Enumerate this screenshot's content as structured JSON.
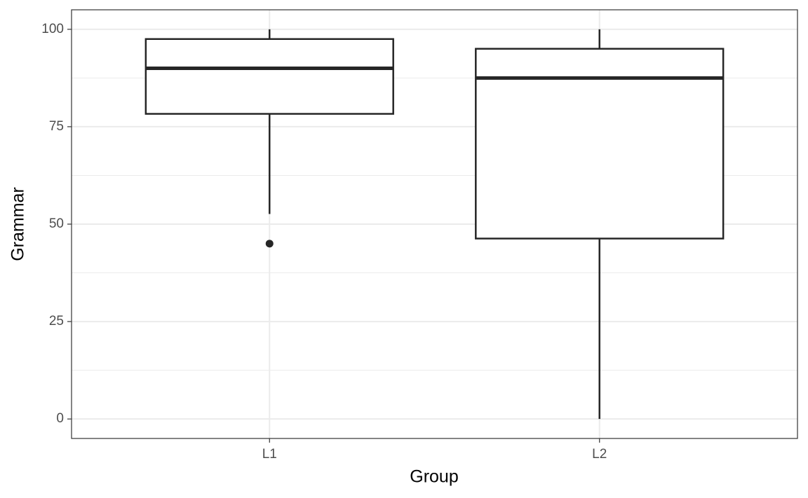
{
  "chart_data": {
    "type": "box",
    "x_label": "Group",
    "y_label": "Grammar",
    "categories": [
      "L1",
      "L2"
    ],
    "boxes": [
      {
        "whisker_low": 52.6,
        "q1": 78.3,
        "median": 90,
        "q3": 97.5,
        "whisker_high": 100,
        "outliers": [
          45
        ]
      },
      {
        "whisker_low": 0,
        "q1": 46.3,
        "median": 87.5,
        "q3": 95,
        "whisker_high": 100,
        "outliers": []
      }
    ],
    "ylim": [
      -5,
      105
    ],
    "yticks": [
      0,
      25,
      50,
      75,
      100
    ],
    "yminorticks": [
      12.5,
      37.5,
      62.5,
      87.5
    ],
    "grid": true,
    "color": "#262626"
  }
}
